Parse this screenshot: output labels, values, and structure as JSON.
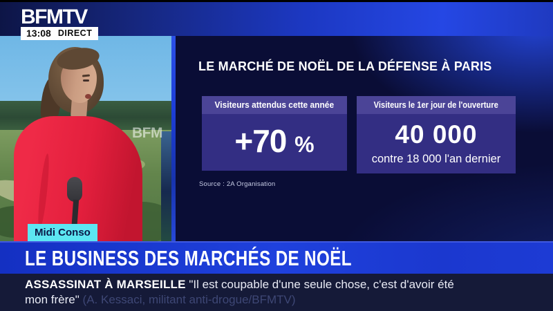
{
  "header": {
    "channel": "BFMTV",
    "time": "13:08",
    "live": "DIRECT"
  },
  "video": {
    "watermark": "BFM",
    "badge": "Midi Conso"
  },
  "infographic": {
    "title": "LE MARCHÉ DE NOËL DE LA DÉFENSE À PARIS",
    "stats": [
      {
        "label": "Visiteurs attendus cette année",
        "value": "+70",
        "unit": "%"
      },
      {
        "label": "Visiteurs le 1er jour de l'ouverture",
        "value": "40 000",
        "comparison": "contre 18 000 l'an dernier"
      }
    ],
    "source": "Source : 2A Organisation"
  },
  "banner": {
    "headline": "LE BUSINESS DES MARCHÉS DE NOËL"
  },
  "ticker": {
    "topic": "ASSASSINAT À MARSEILLE",
    "quote": "\"Il est coupable d'une seule chose, c'est d'avoir été mon frère\"",
    "attribution": "(A. Kessaci, militant anti-drogue/BFMTV)"
  },
  "colors": {
    "brand_blue": "#1c38c2",
    "banner_blue": "#1d3cd6",
    "panel_navy": "#0a0d36",
    "stat_box": "#332e83",
    "stat_box_header": "#4b4497",
    "badge_cyan": "#5ce6f2",
    "ticker_navy": "#151a38",
    "presenter_red": "#e31f3d"
  }
}
